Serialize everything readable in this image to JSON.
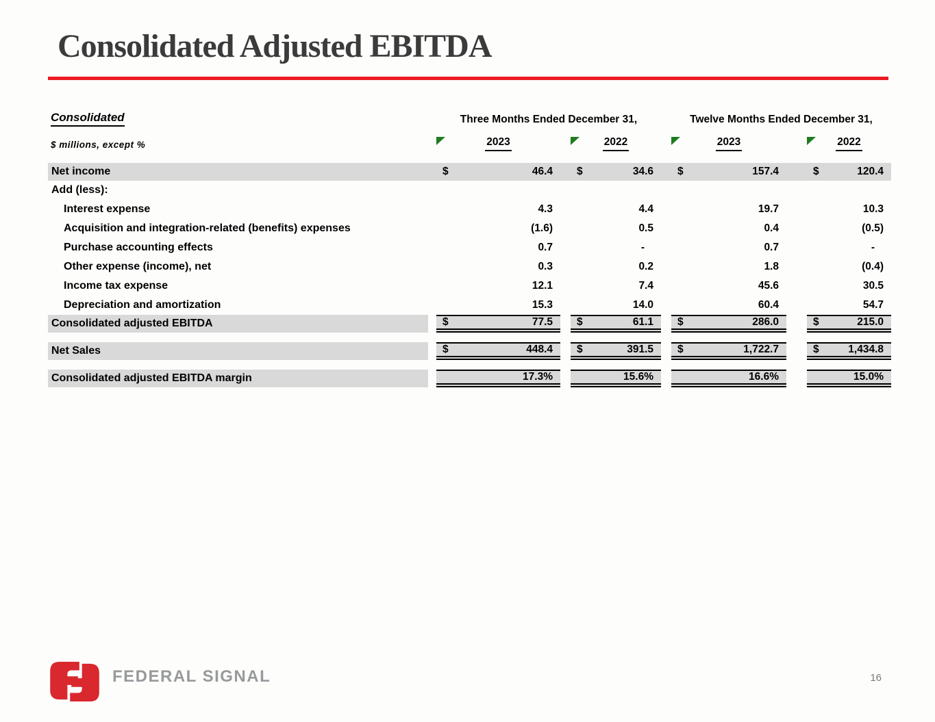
{
  "slide": {
    "title": "Consolidated Adjusted EBITDA",
    "page_number": "16",
    "logo_text": "FEDERAL SIGNAL",
    "colors": {
      "accent_red": "#EC1C24",
      "logo_red": "#D9282E",
      "logo_gray": "#97999B",
      "flag_green": "#1E7C1E",
      "band_gray": "#D9D9D9"
    }
  },
  "table": {
    "section_label": "Consolidated",
    "units_label": "$ millions, except %",
    "currency_symbol": "$",
    "column_groups": [
      "Three Months Ended December 31,",
      "Twelve Months Ended December 31,"
    ],
    "year_headers": [
      "2023",
      "2022",
      "2023",
      "2022"
    ],
    "rows": [
      {
        "label": "Net income",
        "indent": false,
        "dollar": true,
        "style": "band",
        "values": [
          "46.4",
          "34.6",
          "157.4",
          "120.4"
        ]
      },
      {
        "label": "Add (less):",
        "indent": false,
        "dollar": false,
        "style": "norm",
        "values": [
          "",
          "",
          "",
          ""
        ]
      },
      {
        "label": "Interest expense",
        "indent": true,
        "dollar": false,
        "style": "norm",
        "values": [
          "4.3",
          "4.4",
          "19.7",
          "10.3"
        ]
      },
      {
        "label": "Acquisition and integration-related (benefits) expenses",
        "indent": true,
        "dollar": false,
        "style": "norm",
        "values": [
          "(1.6)",
          "0.5",
          "0.4",
          "(0.5)"
        ]
      },
      {
        "label": "Purchase accounting effects",
        "indent": true,
        "dollar": false,
        "style": "norm",
        "values": [
          "0.7",
          "-",
          "0.7",
          "-"
        ]
      },
      {
        "label": "Other expense (income), net",
        "indent": true,
        "dollar": false,
        "style": "norm",
        "values": [
          "0.3",
          "0.2",
          "1.8",
          "(0.4)"
        ]
      },
      {
        "label": "Income tax expense",
        "indent": true,
        "dollar": false,
        "style": "norm",
        "values": [
          "12.1",
          "7.4",
          "45.6",
          "30.5"
        ]
      },
      {
        "label": "Depreciation and amortization",
        "indent": true,
        "dollar": false,
        "style": "norm",
        "values": [
          "15.3",
          "14.0",
          "60.4",
          "54.7"
        ]
      },
      {
        "label": "Consolidated adjusted EBITDA",
        "indent": false,
        "dollar": true,
        "style": "total",
        "gap": false,
        "values": [
          "77.5",
          "61.1",
          "286.0",
          "215.0"
        ]
      },
      {
        "label": "Net Sales",
        "indent": false,
        "dollar": true,
        "style": "total",
        "gap": true,
        "values": [
          "448.4",
          "391.5",
          "1,722.7",
          "1,434.8"
        ]
      },
      {
        "label": "Consolidated adjusted EBITDA margin",
        "indent": false,
        "dollar": false,
        "style": "total",
        "gap": true,
        "values": [
          "17.3%",
          "15.6%",
          "16.6%",
          "15.0%"
        ]
      }
    ]
  }
}
